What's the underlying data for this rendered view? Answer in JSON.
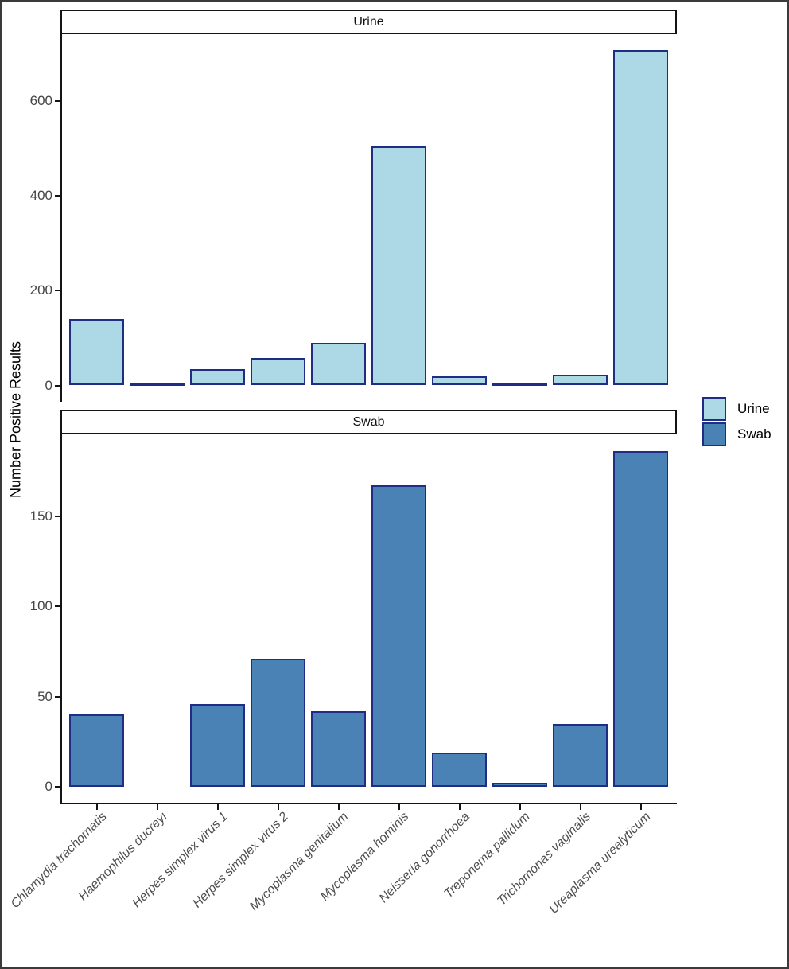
{
  "chart_data": {
    "type": "bar",
    "title": "",
    "xlabel": "",
    "ylabel": "Number Positive Results",
    "categories": [
      "Chlamydia trachomatis",
      "Haemophilus ducreyi",
      "Herpes simplex virus 1",
      "Herpes simplex virus 2",
      "Mycoplasma genitalium",
      "Mycoplasma hominis",
      "Neisseria gonorrhoea",
      "Treponema pallidum",
      "Trichomonas vaginalis",
      "Ureaplasma urealyticum"
    ],
    "facets": [
      {
        "title": "Urine",
        "fill": "#add8e6",
        "values": [
          140,
          1,
          34,
          58,
          90,
          503,
          20,
          1,
          22,
          706
        ],
        "yticks": [
          0,
          200,
          400,
          600
        ],
        "ylim": [
          0,
          741
        ]
      },
      {
        "title": "Swab",
        "fill": "#4a82b6",
        "values": [
          40,
          0,
          46,
          71,
          42,
          167,
          19,
          2,
          35,
          186
        ],
        "yticks": [
          0,
          50,
          100,
          150
        ],
        "ylim": [
          0,
          196
        ]
      }
    ],
    "legend": {
      "position": "right",
      "items": [
        {
          "label": "Urine",
          "color": "#add8e6"
        },
        {
          "label": "Swab",
          "color": "#4a82b6"
        }
      ]
    },
    "grid": "off",
    "bar_border_color": "#1f2d85",
    "axis_color": "#141414",
    "tick_label_color": "#454545"
  }
}
